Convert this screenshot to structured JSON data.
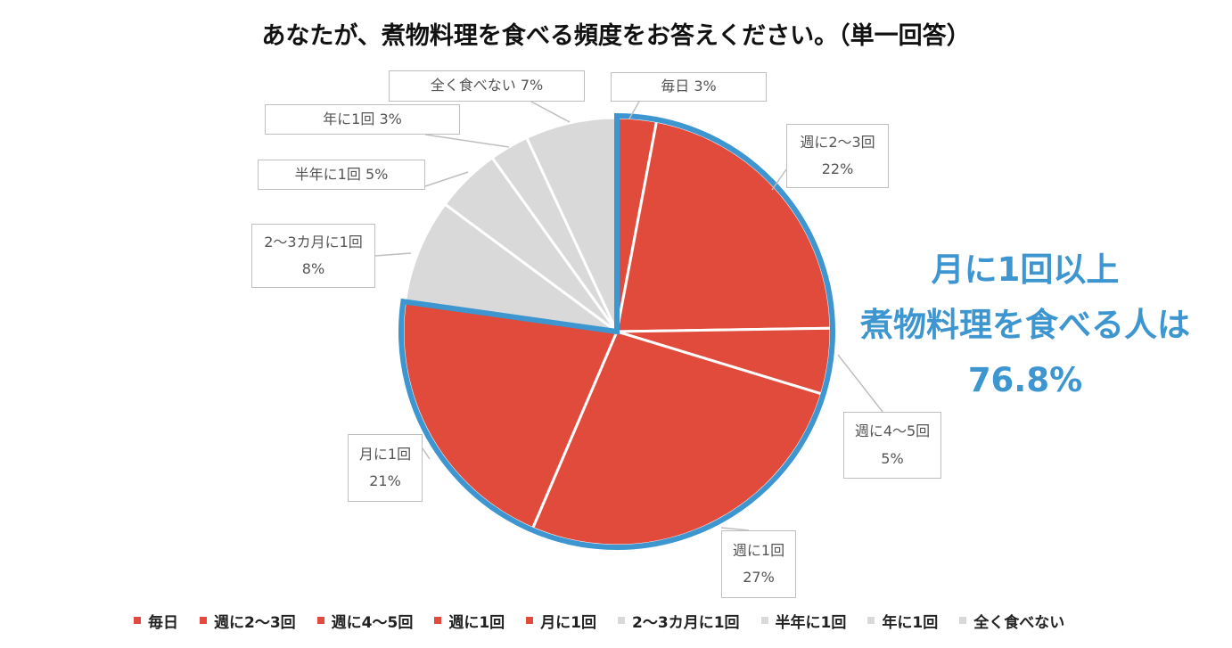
{
  "chart_data": {
    "type": "pie",
    "title": "あなたが、煮物料理を食べる頻度をお答えください。（単一回答）",
    "slices": [
      {
        "name": "毎日",
        "value": 3,
        "color": "#e04b3c",
        "highlighted": true,
        "callout": [
          "毎日 3%"
        ]
      },
      {
        "name": "週に2〜3回",
        "value": 22,
        "color": "#e04b3c",
        "highlighted": true,
        "callout": [
          "週に2〜3回",
          "22%"
        ]
      },
      {
        "name": "週に4〜5回",
        "value": 5,
        "color": "#e04b3c",
        "highlighted": true,
        "callout": [
          "週に4〜5回",
          "5%"
        ]
      },
      {
        "name": "週に1回",
        "value": 27,
        "color": "#e04b3c",
        "highlighted": true,
        "callout": [
          "週に1回",
          "27%"
        ]
      },
      {
        "name": "月に1回",
        "value": 21,
        "color": "#e04b3c",
        "highlighted": true,
        "callout": [
          "月に1回",
          "21%"
        ]
      },
      {
        "name": "2〜3カ月に1回",
        "value": 8,
        "color": "#d9d9d9",
        "highlighted": false,
        "callout": [
          "2〜3カ月に1回",
          "8%"
        ]
      },
      {
        "name": "半年に1回",
        "value": 5,
        "color": "#d9d9d9",
        "highlighted": false,
        "callout": [
          "半年に1回 5%"
        ]
      },
      {
        "name": "年に1回",
        "value": 3,
        "color": "#d9d9d9",
        "highlighted": false,
        "callout": [
          "年に1回 3%"
        ]
      },
      {
        "name": "全く食べない",
        "value": 7,
        "color": "#d9d9d9",
        "highlighted": false,
        "callout": [
          "全く食べない 7%"
        ]
      }
    ],
    "highlight_outline_color": "#3d96cf",
    "slice_separator_color": "#ffffff",
    "legend_position": "bottom",
    "annotation": [
      "月に1回以上",
      "煮物料理を食べる人は",
      "76.8%"
    ],
    "annotation_color": "#3d96cf"
  }
}
